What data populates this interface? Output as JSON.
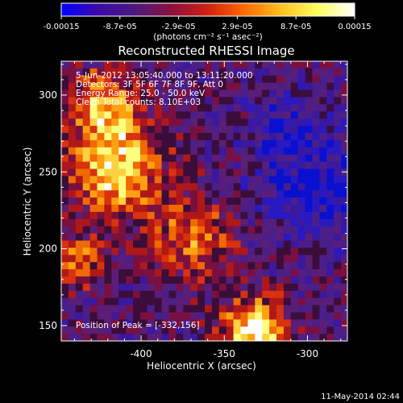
{
  "chart_data": {
    "type": "heatmap",
    "title": "Reconstructed RHESSI Image",
    "xlabel": "Heliocentric X (arcsec)",
    "ylabel": "Heliocentric Y (arcsec)",
    "xlim": [
      -448,
      -276
    ],
    "ylim": [
      140,
      322
    ],
    "xticks": [
      -400,
      -350,
      -300
    ],
    "xtick_labels": [
      "-400",
      "-350",
      "-300"
    ],
    "yticks": [
      150,
      200,
      250,
      300
    ],
    "ytick_labels": [
      "150",
      "200",
      "250",
      "300"
    ],
    "colorbar": {
      "range": [
        -0.00015,
        0.00015
      ],
      "tick_labels": [
        "-0.00015",
        "-8.7e-05",
        "-2.9e-05",
        "2.9e-05",
        "8.7e-05",
        "0.00015"
      ],
      "unit_label": "(photons cm⁻² s⁻¹ asec⁻²)",
      "colors": [
        "#0000ff",
        "#3a0aa8",
        "#4a1a80",
        "#8c1040",
        "#d02010",
        "#ff6a00",
        "#ffc020",
        "#ffff60",
        "#ffffff"
      ]
    },
    "annotations": [
      "5-Jun-2012 13:05:40.000 to 13:11:20.000",
      "Detectors: 3F 5F 6F 7F 8F 9F, Att 0",
      "Energy Range: 25.0 - 50.0 keV",
      "Clean    Total counts: 8.10E+03"
    ],
    "peak_label": "Position of Peak = [-332,156]",
    "peak": {
      "x": -332,
      "y": 156
    },
    "grid": false,
    "footer_date": "11-May-2014 02:44"
  }
}
